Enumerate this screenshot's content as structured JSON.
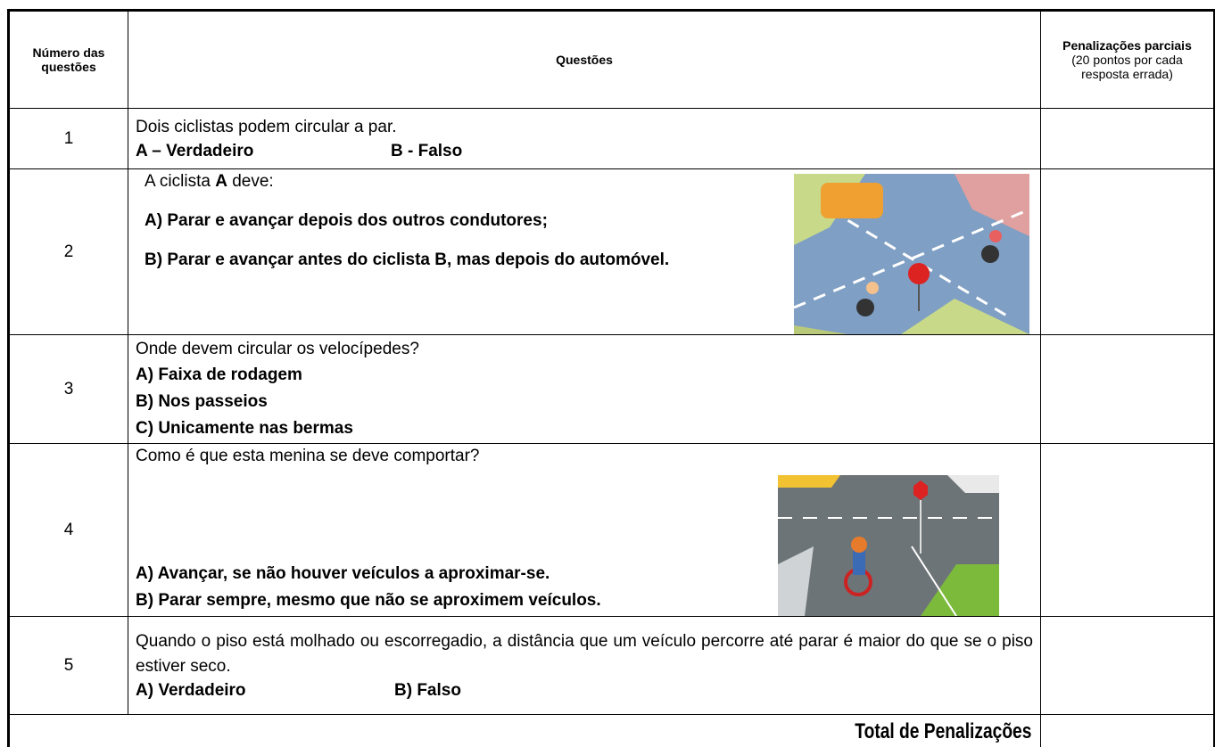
{
  "table": {
    "header": {
      "number": "Número das questões",
      "question": "Questões",
      "penalty_title": "Penalizações parciais",
      "penalty_note": "(20 pontos por cada resposta errada)"
    },
    "rows": [
      {
        "number": "1",
        "question": [
          "Dois ciclistas podem circular a par."
        ],
        "options": [
          "A – Verdadeiro",
          "B - Falso"
        ]
      },
      {
        "number": "2",
        "question": [
          "A ciclista ",
          "A",
          " deve:"
        ],
        "options": [
          "A) Parar e avançar depois dos outros condutores;",
          "B) Parar e avançar antes do ciclista B, mas depois do automóvel."
        ]
      },
      {
        "number": "3",
        "question": [
          "Onde devem circular os velocípedes?"
        ],
        "options": [
          "A) Faixa de rodagem",
          "B) Nos passeios",
          "C) Unicamente nas bermas"
        ]
      },
      {
        "number": "4",
        "question": [
          "Como é que esta menina se deve comportar?"
        ],
        "options": [
          "A) Avançar, se não houver veículos a aproximar-se.",
          "B) Parar sempre, mesmo que não se aproximem veículos."
        ]
      },
      {
        "number": "5",
        "question": [
          "Quando o piso está molhado ou escorregadio, a distância que um veículo percorre até parar é maior do que se o piso estiver seco."
        ],
        "options": [
          "A) Verdadeiro",
          "B) Falso"
        ]
      }
    ],
    "total": "Total de Penalizações"
  }
}
